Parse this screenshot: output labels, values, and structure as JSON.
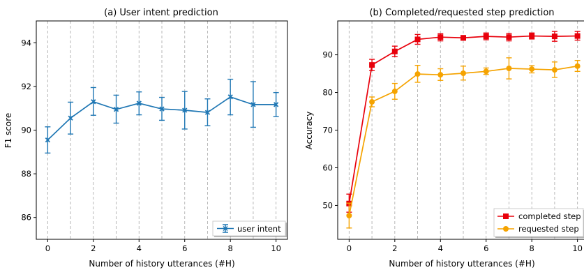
{
  "chart_data": [
    {
      "type": "line",
      "title": "(a) User intent prediction",
      "xlabel": "Number of history utterances (#H)",
      "ylabel": "F1 score",
      "xlim": [
        -0.5,
        10.5
      ],
      "ylim": [
        85,
        95
      ],
      "xticks": [
        0,
        2,
        4,
        6,
        8,
        10
      ],
      "yticks": [
        86,
        88,
        90,
        92,
        94
      ],
      "grid": "vertical dashed at each integer x",
      "legend_position": "lower right",
      "x": [
        0,
        1,
        2,
        3,
        4,
        5,
        6,
        7,
        8,
        9,
        10
      ],
      "series": [
        {
          "name": "user intent",
          "color": "#1f77b4",
          "marker": "x",
          "values": [
            89.55,
            90.55,
            91.3,
            90.95,
            91.23,
            90.97,
            90.91,
            90.81,
            91.52,
            91.17,
            91.17
          ],
          "err_low": [
            88.95,
            89.82,
            90.68,
            90.32,
            90.7,
            90.45,
            90.05,
            90.2,
            90.7,
            90.13,
            90.62
          ],
          "err_high": [
            90.15,
            91.28,
            91.95,
            91.6,
            91.75,
            91.5,
            91.77,
            91.43,
            92.33,
            92.22,
            91.72
          ]
        }
      ]
    },
    {
      "type": "line",
      "title": "(b) Completed/requested step prediction",
      "xlabel": "Number of history utterances (#H)",
      "ylabel": "Accuracy",
      "xlim": [
        -0.5,
        10.5
      ],
      "ylim": [
        41,
        99
      ],
      "xticks": [
        0,
        2,
        4,
        6,
        8,
        10
      ],
      "yticks": [
        50,
        60,
        70,
        80,
        90
      ],
      "grid": "vertical dashed at each integer x",
      "legend_position": "lower right",
      "x": [
        0,
        1,
        2,
        3,
        4,
        5,
        6,
        7,
        8,
        9,
        10
      ],
      "series": [
        {
          "name": "completed step",
          "color": "#e8000b",
          "marker": "square",
          "values": [
            50.5,
            87.3,
            90.9,
            94.1,
            94.7,
            94.5,
            94.9,
            94.7,
            95.0,
            94.9,
            95.0
          ],
          "err_low": [
            48.2,
            85.8,
            89.5,
            92.8,
            93.7,
            93.9,
            94.0,
            93.7,
            94.2,
            93.6,
            93.9
          ],
          "err_high": [
            53.0,
            88.8,
            92.3,
            95.4,
            95.6,
            95.1,
            95.8,
            95.7,
            95.8,
            96.2,
            96.2
          ]
        },
        {
          "name": "requested step",
          "color": "#f5a300",
          "marker": "circle",
          "values": [
            47.3,
            77.5,
            80.3,
            84.9,
            84.7,
            85.1,
            85.6,
            86.4,
            86.2,
            86.0,
            87.0
          ],
          "err_low": [
            44.0,
            76.2,
            78.2,
            82.7,
            83.2,
            83.3,
            84.8,
            83.6,
            85.2,
            84.0,
            85.6
          ],
          "err_high": [
            50.6,
            78.8,
            82.4,
            87.2,
            86.3,
            87.0,
            86.5,
            89.2,
            87.1,
            88.1,
            88.5
          ]
        }
      ]
    }
  ]
}
